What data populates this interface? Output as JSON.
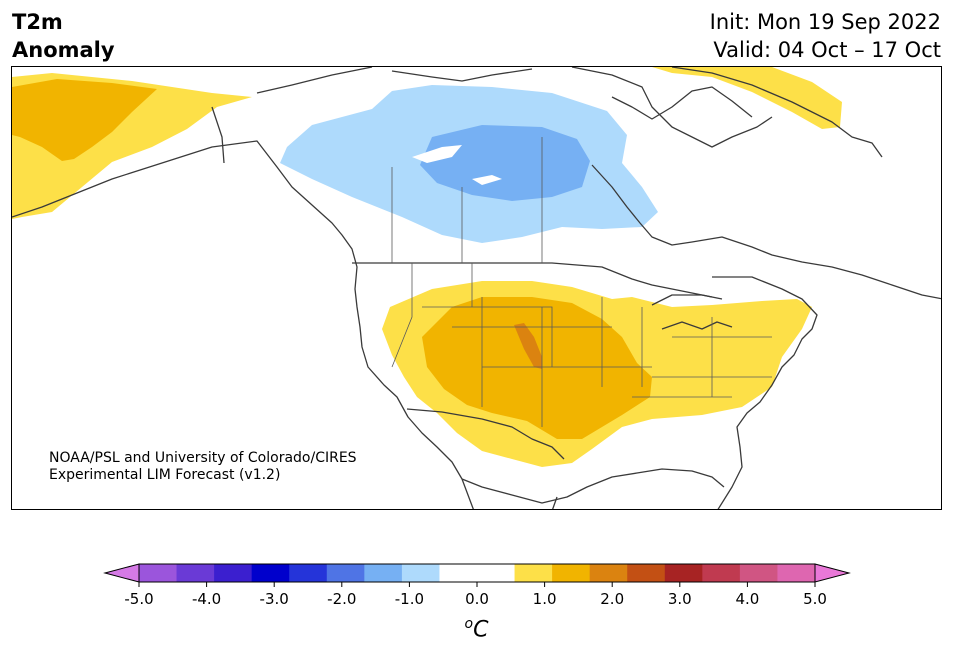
{
  "title": {
    "line1": "T2m",
    "line2": "Anomaly"
  },
  "dates": {
    "init": "Init: Mon 19 Sep 2022",
    "valid": "Valid: 04 Oct – 17 Oct"
  },
  "credit": {
    "line1": "NOAA/PSL and University of Colorado/CIRES",
    "line2": "Experimental LIM Forecast (v1.2)"
  },
  "colorbar": {
    "unit_symbol": "o",
    "unit_letter": "C",
    "tick_labels": [
      "-5.0",
      "-4.0",
      "-3.0",
      "-2.0",
      "-1.0",
      "0.0",
      "1.0",
      "2.0",
      "3.0",
      "4.0",
      "5.0"
    ],
    "low_extend_color": "#d57ae6",
    "high_extend_color": "#e978d8",
    "colors": [
      "#d57ae6",
      "#9b55dc",
      "#6a3ad6",
      "#3b1fcf",
      "#0000cc",
      "#2534d9",
      "#4f74e5",
      "#76b0f3",
      "#aedafc",
      "#ffffff",
      "#ffffff",
      "#fde048",
      "#f1b400",
      "#db8310",
      "#c35014",
      "#a72323",
      "#c03a50",
      "#d05583",
      "#de66b0",
      "#e978d8"
    ]
  },
  "anomaly_colors": {
    "cold_light": "#aedafc",
    "cold_medium": "#76b0f3",
    "warm_light": "#fde048",
    "warm_medium": "#f1b400",
    "warm_strong": "#db8310"
  }
}
